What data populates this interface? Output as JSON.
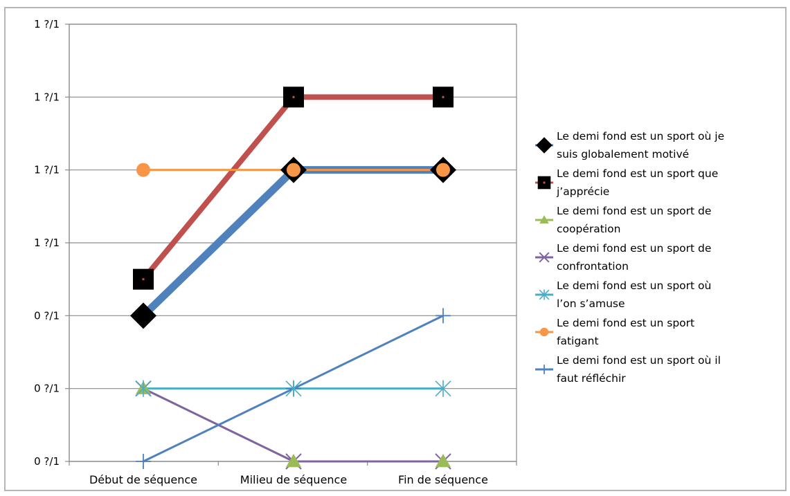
{
  "chart_data": {
    "type": "line",
    "title": "",
    "xlabel": "",
    "ylabel": "",
    "categories": [
      "Début de séquence",
      "Milieu de séquence",
      "Fin de séquence"
    ],
    "ytick_labels": [
      "0 ?/1",
      "0 ?/1",
      "0 ?/1",
      "1 ?/1",
      "1 ?/1",
      "1 ?/1",
      "1 ?/1"
    ],
    "ylim": [
      0,
      6
    ],
    "grid": true,
    "legend_position": "right",
    "series": [
      {
        "name": "Le demi fond est un sport où je suis globalement motivé",
        "legend_lines": [
          "Le demi fond est un sport où je",
          "suis globalement motivé"
        ],
        "values": [
          2,
          4,
          4
        ],
        "color": "#4f81bd",
        "marker": "diamond",
        "marker_color": "#000000",
        "line_width": 11
      },
      {
        "name": "Le demi fond est un sport que j’apprécie",
        "legend_lines": [
          "Le demi fond est un sport que",
          "j’apprécie"
        ],
        "values": [
          2.5,
          5,
          5
        ],
        "color": "#c0504d",
        "marker": "square",
        "marker_color": "#000000",
        "line_width": 8
      },
      {
        "name": "Le demi fond est un sport de coopération",
        "legend_lines": [
          "Le demi fond est un sport de",
          "coopération"
        ],
        "values": [
          1,
          0,
          0
        ],
        "color": "#9bbb59",
        "marker": "triangle",
        "marker_color": "#9bbb59",
        "line_width": 3
      },
      {
        "name": "Le demi fond est un sport de confrontation",
        "legend_lines": [
          "Le demi fond est un sport de",
          "confrontation"
        ],
        "values": [
          1,
          0,
          0
        ],
        "color": "#8064a2",
        "marker": "x",
        "marker_color": "#8064a2",
        "line_width": 3
      },
      {
        "name": "Le demi fond est un sport où l’on s’amuse",
        "legend_lines": [
          "Le demi fond est un sport où",
          "l’on s’amuse"
        ],
        "values": [
          1,
          1,
          1
        ],
        "color": "#4bacc6",
        "marker": "asterisk",
        "marker_color": "#4bacc6",
        "line_width": 3
      },
      {
        "name": "Le demi fond est un sport fatigant",
        "legend_lines": [
          "Le demi fond est un sport",
          "fatigant"
        ],
        "values": [
          4,
          4,
          4
        ],
        "color": "#f79646",
        "marker": "circle",
        "marker_color": "#f79646",
        "line_width": 3
      },
      {
        "name": "Le demi fond est un sport où il faut réfléchir",
        "legend_lines": [
          "Le demi fond est un sport où il",
          "faut réfléchir"
        ],
        "values": [
          0,
          1,
          2
        ],
        "color": "#4f81bd",
        "marker": "plus",
        "marker_color": "#4f81bd",
        "line_width": 3
      }
    ]
  }
}
